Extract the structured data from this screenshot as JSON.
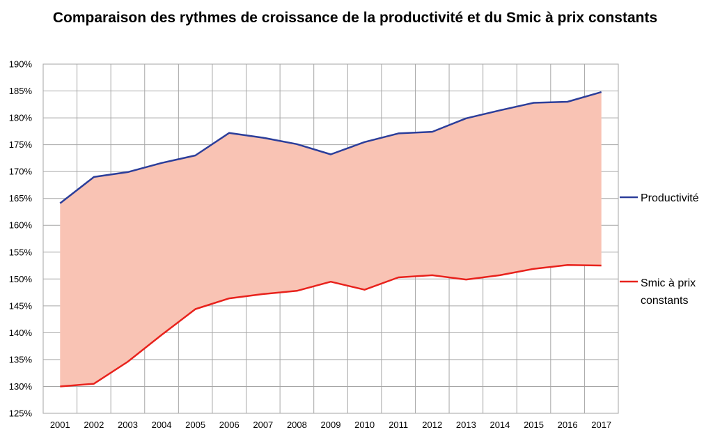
{
  "chart_data": {
    "type": "line",
    "title": "Comparaison des rythmes de croissance de la productivité et du Smic à prix constants",
    "xlabel": "",
    "ylabel": "",
    "categories": [
      "2001",
      "2002",
      "2003",
      "2004",
      "2005",
      "2006",
      "2007",
      "2008",
      "2009",
      "2010",
      "2011",
      "2012",
      "2013",
      "2014",
      "2015",
      "2016",
      "2017"
    ],
    "series": [
      {
        "name": "Productivité",
        "color": "#2c3e9a",
        "values": [
          164.1,
          169.0,
          169.9,
          171.6,
          173.0,
          177.2,
          176.3,
          175.1,
          173.2,
          175.5,
          177.1,
          177.4,
          179.9,
          181.4,
          182.8,
          183.0,
          184.8
        ]
      },
      {
        "name": "Smic à prix constants",
        "color": "#e8221c",
        "values": [
          130.0,
          130.5,
          134.6,
          139.6,
          144.4,
          146.4,
          147.2,
          147.8,
          149.5,
          148.0,
          150.3,
          150.7,
          149.9,
          150.7,
          151.9,
          152.6,
          152.5
        ]
      }
    ],
    "fill_between": {
      "color": "#f9c3b4"
    },
    "ylim": [
      125,
      190
    ],
    "yticks": [
      "125%",
      "130%",
      "135%",
      "140%",
      "145%",
      "150%",
      "155%",
      "160%",
      "165%",
      "170%",
      "175%",
      "180%",
      "185%",
      "190%"
    ],
    "grid": true,
    "legend": {
      "position": "right",
      "labels": [
        "Productivité",
        "Smic à prix",
        "constants"
      ]
    }
  }
}
